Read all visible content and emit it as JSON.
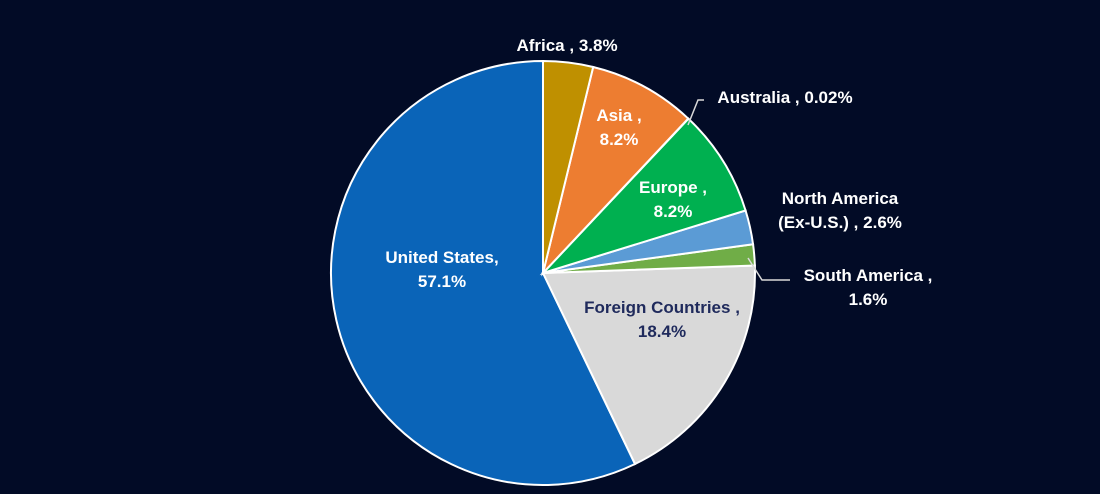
{
  "chart_data": {
    "type": "pie",
    "categories": [
      "Africa ,",
      "Asia ,",
      "Australia ,",
      "Europe ,",
      "North America (Ex-U.S.) ,",
      "South America ,",
      "Foreign Countries ,",
      "United States,"
    ],
    "values": [
      3.8,
      8.2,
      0.02,
      8.2,
      2.6,
      1.6,
      18.4,
      57.1
    ],
    "value_labels": [
      "3.8%",
      "8.2%",
      "0.02%",
      "8.2%",
      "2.6%",
      "1.6%",
      "18.4%",
      "57.1%"
    ],
    "colors": [
      "#bf9000",
      "#ed7d31",
      "#a5a5a5",
      "#00b050",
      "#5b9bd5",
      "#70ad47",
      "#d9d9d9",
      "#0a64b8"
    ]
  }
}
